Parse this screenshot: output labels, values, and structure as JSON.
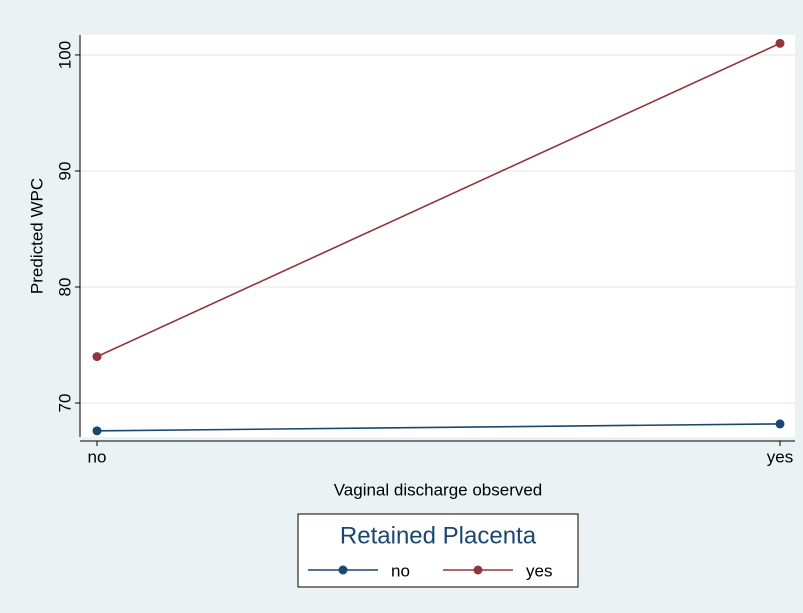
{
  "chart_data": {
    "type": "line",
    "x_label": "Vaginal discharge observed",
    "y_label": "Predicted WPC",
    "legend_title": "Retained Placenta",
    "categories": [
      "no",
      "yes"
    ],
    "series": [
      {
        "name": "no",
        "color": "#1a476f",
        "values": [
          67.6,
          68.2
        ]
      },
      {
        "name": "yes",
        "color": "#90353b",
        "values": [
          74.0,
          101.0
        ]
      }
    ],
    "ylim": [
      67.07,
      101.72
    ],
    "yticks": [
      70,
      80,
      90,
      100
    ],
    "grid": true
  }
}
